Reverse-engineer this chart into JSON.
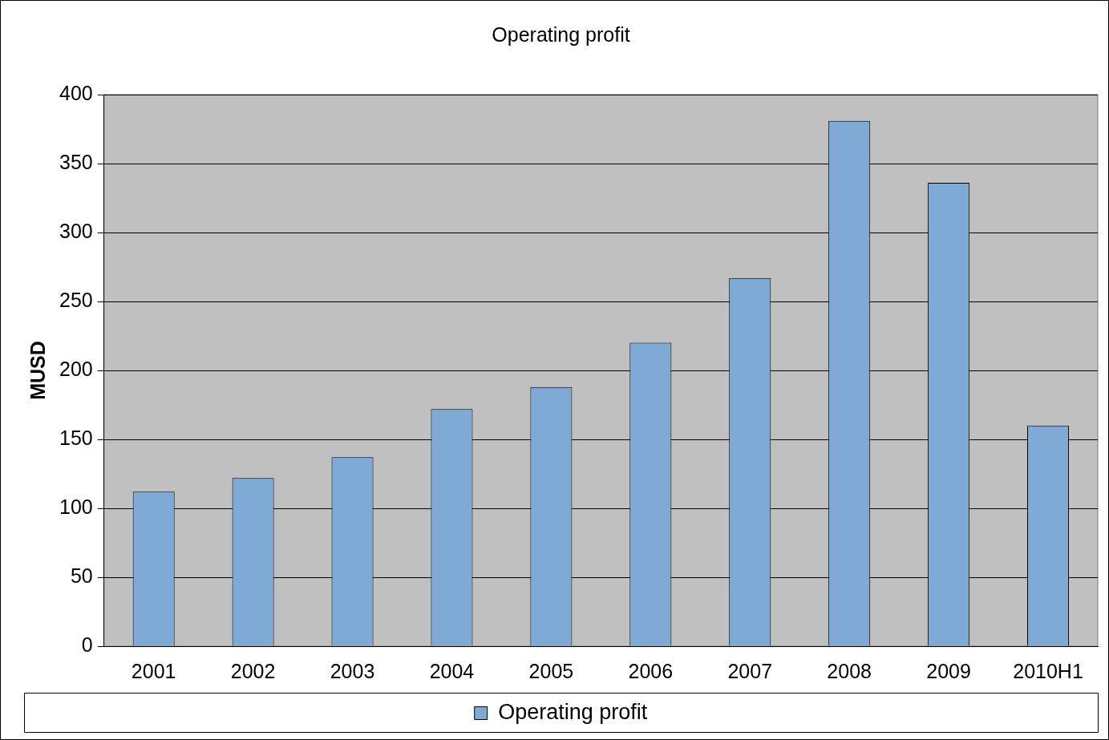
{
  "chart_data": {
    "type": "bar",
    "title": "Operating profit",
    "ylabel": "MUSD",
    "categories": [
      "2001",
      "2002",
      "2003",
      "2004",
      "2005",
      "2006",
      "2007",
      "2008",
      "2009",
      "2010H1"
    ],
    "series": [
      {
        "name": "Operating profit",
        "color": "#7faad6",
        "values": [
          112,
          122,
          137,
          172,
          188,
          220,
          267,
          381,
          336,
          160
        ]
      }
    ],
    "ylim": [
      0,
      400
    ],
    "yticks": [
      0,
      50,
      100,
      150,
      200,
      250,
      300,
      350,
      400
    ],
    "grid": "y",
    "legend": "bottom"
  }
}
